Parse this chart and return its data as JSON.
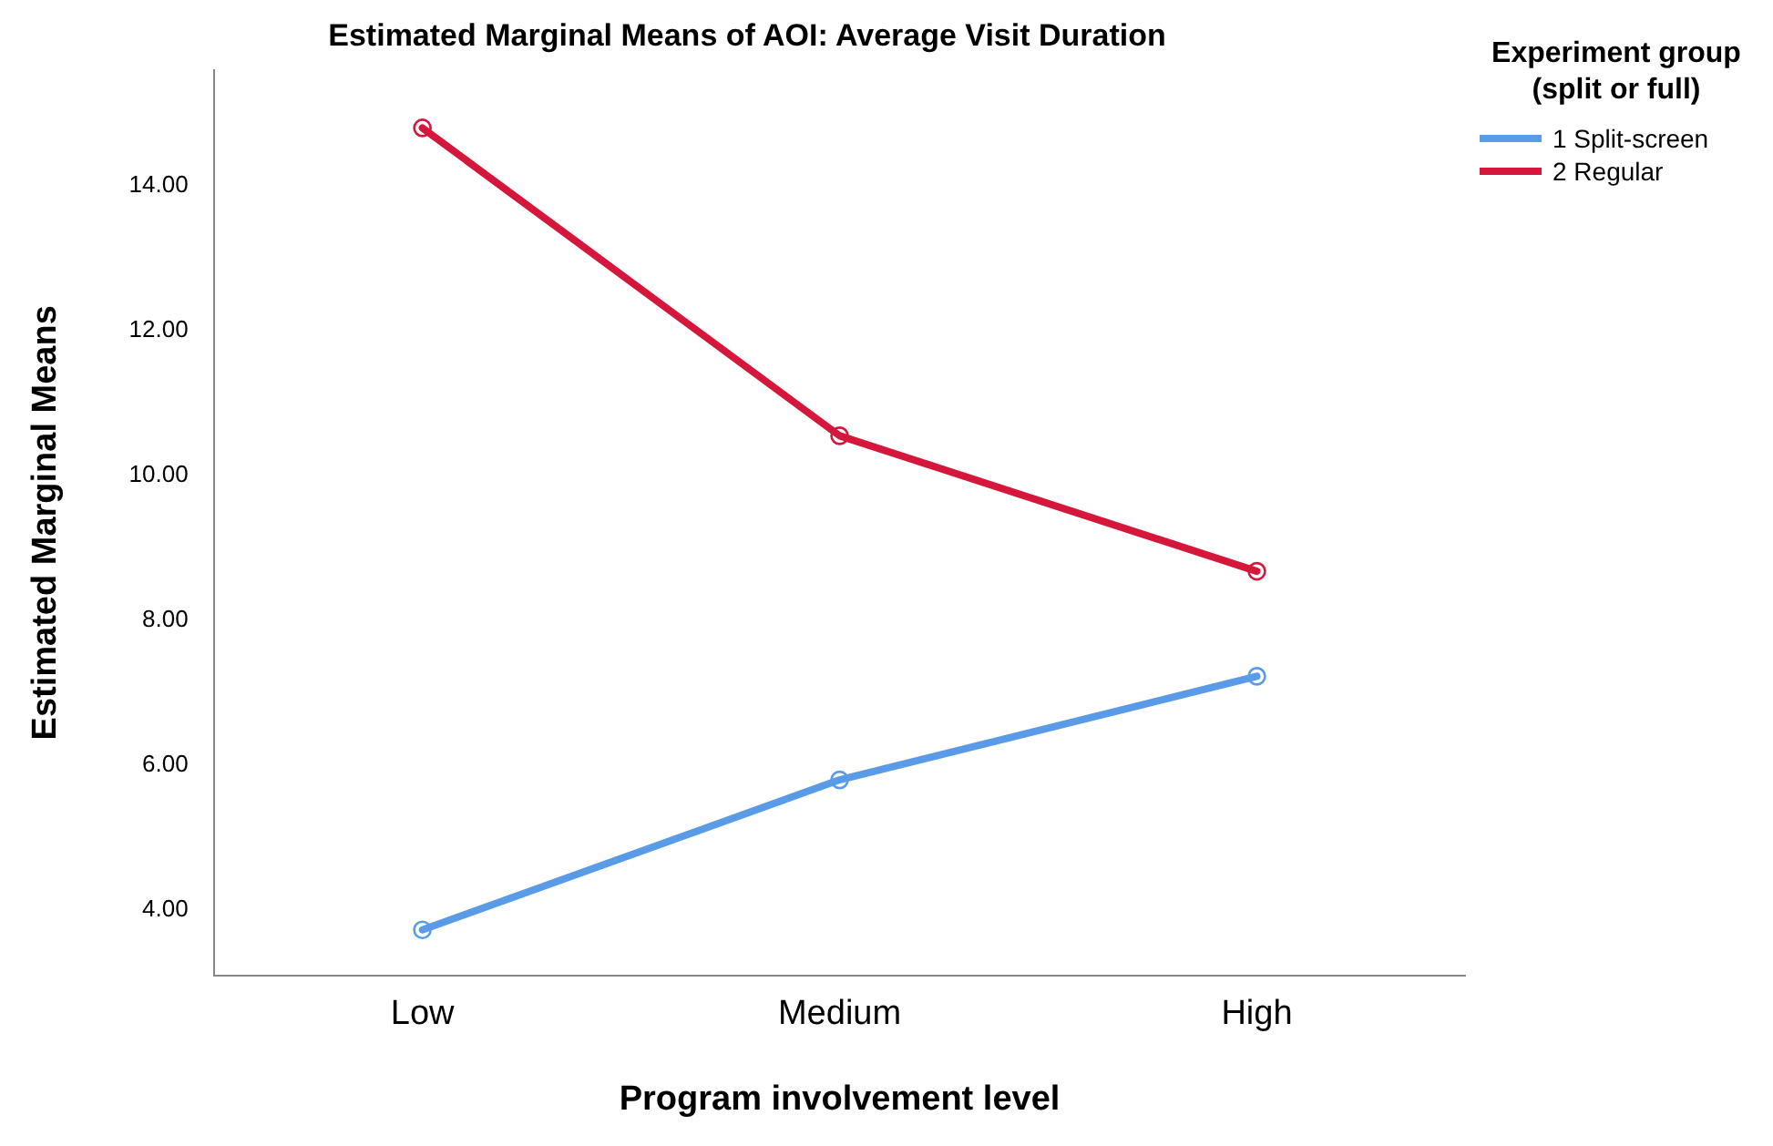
{
  "chart_data": {
    "type": "line",
    "title": "Estimated Marginal Means of AOI: Average Visit Duration",
    "xlabel": "Program involvement level",
    "ylabel": "Estimated Marginal Means",
    "legend_title": "Experiment group (split or full)",
    "categories": [
      "Low",
      "Medium",
      "High"
    ],
    "series": [
      {
        "name": "1 Split-screen",
        "color": "#5a9be8",
        "values": [
          3.73,
          5.8,
          7.23
        ]
      },
      {
        "name": "2 Regular",
        "color": "#d5173c",
        "values": [
          14.8,
          10.55,
          8.68
        ]
      }
    ],
    "ylim": [
      3.1,
      15.6
    ],
    "yticks": [
      {
        "value": 4,
        "label": "4.00"
      },
      {
        "value": 6,
        "label": "6.00"
      },
      {
        "value": 8,
        "label": "8.00"
      },
      {
        "value": 10,
        "label": "10.00"
      },
      {
        "value": 12,
        "label": "12.00"
      },
      {
        "value": 14,
        "label": "14.00"
      }
    ],
    "grid": false,
    "legend": "top right",
    "marker": "circle",
    "line_style": "solid"
  }
}
